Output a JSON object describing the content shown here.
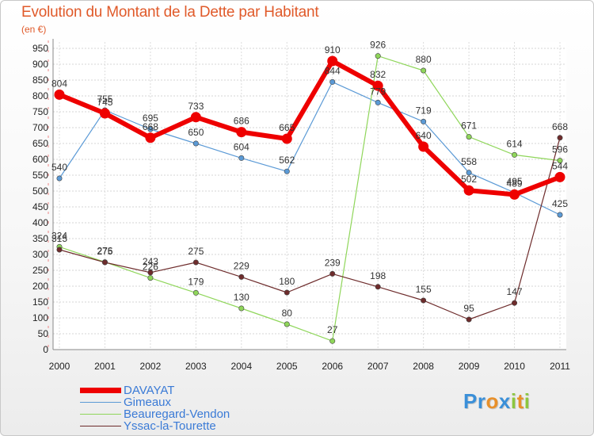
{
  "title": "Evolution du Montant de la Dette par Habitant",
  "subtitle": "(en €)",
  "logo": {
    "letters": [
      "P",
      "r",
      "o",
      "x",
      "i",
      "t",
      "i"
    ],
    "colors": [
      "#3a8fd8",
      "#3a8fd8",
      "#e8902a",
      "#3a8fd8",
      "#8cc63f",
      "#e8902a",
      "#8cc63f"
    ]
  },
  "chart_data": {
    "type": "line",
    "title": "Evolution du Montant de la Dette par Habitant",
    "ylabel": "(en €)",
    "xlabel": "",
    "x": [
      "2000",
      "2001",
      "2002",
      "2003",
      "2004",
      "2005",
      "2006",
      "2007",
      "2008",
      "2009",
      "2010",
      "2011"
    ],
    "ylim": [
      0,
      950
    ],
    "yticks": [
      0,
      50,
      100,
      150,
      200,
      250,
      300,
      350,
      400,
      450,
      500,
      550,
      600,
      650,
      700,
      750,
      800,
      850,
      900,
      950
    ],
    "grid": true,
    "legend_position": "bottom-left",
    "series": [
      {
        "name": "Gimeaux",
        "color": "#5b9ad6",
        "values": [
          540,
          755,
          695,
          650,
          604,
          562,
          844,
          779,
          719,
          558,
          495,
          425
        ],
        "labels": [
          "540",
          "755",
          "695",
          "650",
          "604",
          "562",
          "844",
          "779",
          "719",
          "558",
          "495",
          "425"
        ],
        "width": 1.2
      },
      {
        "name": "Beauregard-Vendon",
        "color": "#8fd65a",
        "values": [
          324,
          276,
          226,
          179,
          130,
          80,
          27,
          926,
          880,
          671,
          614,
          596
        ],
        "labels": [
          "324",
          "276",
          "226",
          "179",
          "130",
          "80",
          "27",
          "926",
          "880",
          "671",
          "614",
          "596"
        ],
        "width": 1.2
      },
      {
        "name": "Yssac-la-Tourette",
        "color": "#6e2c2c",
        "values": [
          315,
          275,
          243,
          275,
          229,
          180,
          239,
          198,
          155,
          95,
          147,
          668
        ],
        "labels": [
          "315",
          "275",
          "243",
          "275",
          "229",
          "180",
          "239",
          "198",
          "155",
          "95",
          "147",
          "668"
        ],
        "width": 1.2
      },
      {
        "name": "DAVAYAT",
        "color": "#ee0000",
        "values": [
          804,
          745,
          668,
          733,
          686,
          665,
          910,
          832,
          640,
          502,
          489,
          544
        ],
        "labels": [
          "804",
          "745",
          "668",
          "733",
          "686",
          "665",
          "910",
          "832",
          "640",
          "502",
          "489",
          "544"
        ],
        "width": 6
      }
    ],
    "legend_order": [
      "DAVAYAT",
      "Gimeaux",
      "Beauregard-Vendon",
      "Yssac-la-Tourette"
    ]
  }
}
